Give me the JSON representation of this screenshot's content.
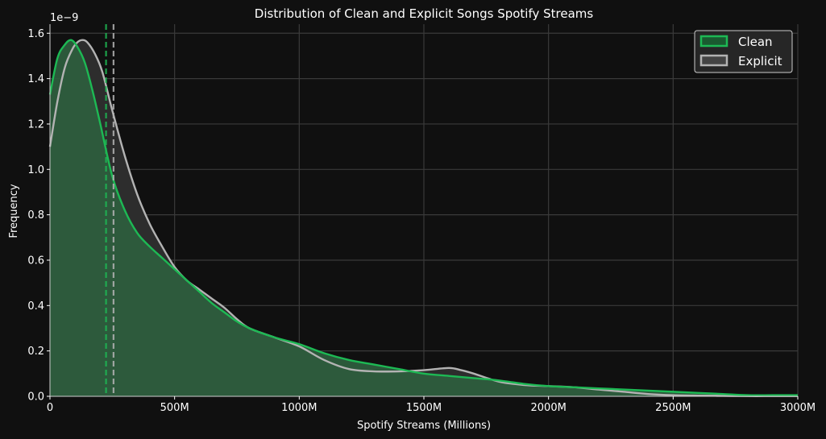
{
  "chart_data": {
    "type": "area",
    "title": "Distribution of Clean and Explicit Songs Spotify Streams",
    "xlabel": "Spotify Streams (Millions)",
    "ylabel": "Frequency",
    "y_offset_label": "1e−9",
    "xlim": [
      0,
      3000
    ],
    "ylim": [
      0,
      1.64
    ],
    "x_ticks": [
      0,
      500,
      1000,
      1500,
      2000,
      2500,
      3000
    ],
    "x_tick_labels": [
      "0",
      "500M",
      "1000M",
      "1500M",
      "2000M",
      "2500M",
      "3000M"
    ],
    "y_ticks": [
      0,
      0.2,
      0.4,
      0.6,
      0.8,
      1.0,
      1.2,
      1.4,
      1.6
    ],
    "y_tick_labels": [
      "0.0",
      "0.2",
      "0.4",
      "0.6",
      "0.8",
      "1.0",
      "1.2",
      "1.4",
      "1.6"
    ],
    "grid": true,
    "legend_position": "top-right",
    "series": [
      {
        "name": "Clean",
        "color": "#1db954",
        "fill": "#2e5e3e",
        "mean_line_x": 225,
        "x": [
          0,
          30,
          60,
          85,
          110,
          140,
          170,
          200,
          250,
          300,
          350,
          400,
          450,
          500,
          550,
          600,
          650,
          700,
          750,
          800,
          900,
          1000,
          1100,
          1200,
          1300,
          1400,
          1500,
          1600,
          1700,
          1800,
          1900,
          2000,
          2100,
          2200,
          2300,
          2400,
          2500,
          2600,
          2700,
          2800,
          2900,
          3000
        ],
        "y": [
          1.33,
          1.49,
          1.55,
          1.57,
          1.54,
          1.47,
          1.35,
          1.21,
          0.97,
          0.82,
          0.72,
          0.66,
          0.61,
          0.56,
          0.51,
          0.46,
          0.41,
          0.37,
          0.33,
          0.3,
          0.26,
          0.23,
          0.19,
          0.16,
          0.14,
          0.12,
          0.1,
          0.09,
          0.08,
          0.07,
          0.055,
          0.045,
          0.04,
          0.035,
          0.03,
          0.025,
          0.02,
          0.015,
          0.01,
          0.005,
          0.005,
          0.005
        ]
      },
      {
        "name": "Explicit",
        "color": "#b3b3b3",
        "fill": "#2d2d2d",
        "mean_line_x": 255,
        "x": [
          0,
          30,
          60,
          90,
          110,
          130,
          150,
          180,
          210,
          250,
          300,
          350,
          400,
          450,
          500,
          550,
          600,
          650,
          700,
          750,
          800,
          900,
          1000,
          1100,
          1200,
          1300,
          1400,
          1500,
          1600,
          1650,
          1700,
          1800,
          1900,
          2000,
          2100,
          2200,
          2300,
          2400,
          2500,
          2600,
          2700,
          2800,
          2900,
          3000
        ],
        "y": [
          1.1,
          1.3,
          1.45,
          1.53,
          1.56,
          1.57,
          1.56,
          1.51,
          1.43,
          1.26,
          1.06,
          0.89,
          0.76,
          0.66,
          0.57,
          0.51,
          0.47,
          0.43,
          0.39,
          0.34,
          0.3,
          0.26,
          0.22,
          0.16,
          0.12,
          0.11,
          0.11,
          0.115,
          0.125,
          0.115,
          0.1,
          0.065,
          0.05,
          0.045,
          0.04,
          0.03,
          0.02,
          0.01,
          0.005,
          0.003,
          0.002,
          0.001,
          0.001,
          0.001
        ]
      }
    ]
  }
}
